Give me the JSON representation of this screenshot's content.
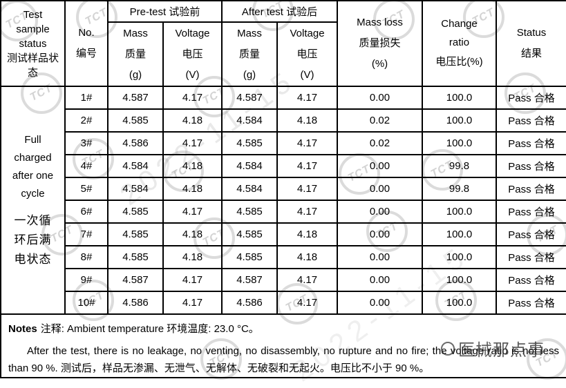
{
  "table": {
    "header": {
      "test_sample_status_en": "Test sample status",
      "test_sample_status_zh": "测试样品状态",
      "no_en": "No.",
      "no_zh": "编号",
      "pre_test": "Pre-test 试验前",
      "after_test": "After test 试验后",
      "mass_en": "Mass",
      "mass_zh": "质量",
      "mass_unit": "(g)",
      "voltage_en": "Voltage",
      "voltage_zh": "电压",
      "voltage_unit": "(V)",
      "mass_loss_en": "Mass loss",
      "mass_loss_zh": "质量损失",
      "mass_loss_unit": "(%)",
      "change_ratio_en": "Change ratio",
      "change_ratio_zh": "电压比(%)",
      "status_en": "Status",
      "status_zh": "结果"
    },
    "sample_status_en": "Full charged after one cycle",
    "sample_status_zh": "一次循环后满电状态",
    "rows": [
      {
        "no": "1#",
        "pre_mass": "4.587",
        "pre_voltage": "4.17",
        "after_mass": "4.587",
        "after_voltage": "4.17",
        "mass_loss": "0.00",
        "change_ratio": "100.0",
        "status": "Pass 合格"
      },
      {
        "no": "2#",
        "pre_mass": "4.585",
        "pre_voltage": "4.18",
        "after_mass": "4.584",
        "after_voltage": "4.18",
        "mass_loss": "0.02",
        "change_ratio": "100.0",
        "status": "Pass 合格"
      },
      {
        "no": "3#",
        "pre_mass": "4.586",
        "pre_voltage": "4.17",
        "after_mass": "4.585",
        "after_voltage": "4.17",
        "mass_loss": "0.02",
        "change_ratio": "100.0",
        "status": "Pass 合格"
      },
      {
        "no": "4#",
        "pre_mass": "4.584",
        "pre_voltage": "4.18",
        "after_mass": "4.584",
        "after_voltage": "4.17",
        "mass_loss": "0.00",
        "change_ratio": "99.8",
        "status": "Pass 合格"
      },
      {
        "no": "5#",
        "pre_mass": "4.584",
        "pre_voltage": "4.18",
        "after_mass": "4.584",
        "after_voltage": "4.17",
        "mass_loss": "0.00",
        "change_ratio": "99.8",
        "status": "Pass 合格"
      },
      {
        "no": "6#",
        "pre_mass": "4.585",
        "pre_voltage": "4.17",
        "after_mass": "4.585",
        "after_voltage": "4.17",
        "mass_loss": "0.00",
        "change_ratio": "100.0",
        "status": "Pass 合格"
      },
      {
        "no": "7#",
        "pre_mass": "4.585",
        "pre_voltage": "4.18",
        "after_mass": "4.585",
        "after_voltage": "4.18",
        "mass_loss": "0.00",
        "change_ratio": "100.0",
        "status": "Pass 合格"
      },
      {
        "no": "8#",
        "pre_mass": "4.585",
        "pre_voltage": "4.18",
        "after_mass": "4.585",
        "after_voltage": "4.18",
        "mass_loss": "0.00",
        "change_ratio": "100.0",
        "status": "Pass 合格"
      },
      {
        "no": "9#",
        "pre_mass": "4.587",
        "pre_voltage": "4.17",
        "after_mass": "4.587",
        "after_voltage": "4.17",
        "mass_loss": "0.00",
        "change_ratio": "100.0",
        "status": "Pass 合格"
      },
      {
        "no": "10#",
        "pre_mass": "4.586",
        "pre_voltage": "4.17",
        "after_mass": "4.586",
        "after_voltage": "4.17",
        "mass_loss": "0.00",
        "change_ratio": "100.0",
        "status": "Pass 合格"
      }
    ]
  },
  "notes": {
    "label": "Notes",
    "line1": "注释: Ambient temperature 环境温度: 23.0 °C。",
    "paragraph": "After the test, there is no leakage, no venting, no disassembly, no rupture and no fire; the voltage ratio is not less than 90 %. 测试后，样品无渗漏、无泄气、无解体、无破裂和无起火。电压比不小于 90 %。"
  },
  "watermarks": {
    "stamp_text": "TCT",
    "date_text": "2022-11-15",
    "brand_text": "医械那点事"
  }
}
